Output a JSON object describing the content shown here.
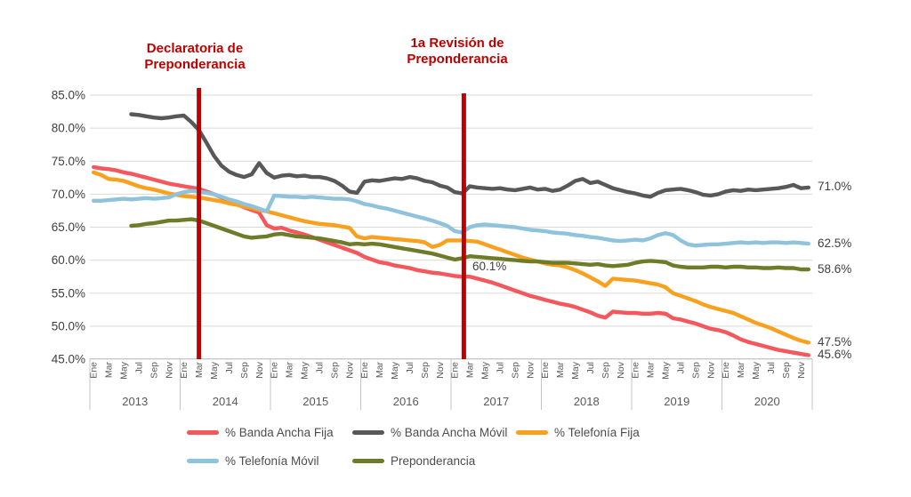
{
  "annotations": {
    "declaratoria": {
      "line1": "Declaratoria de",
      "line2": "Preponderancia",
      "color": "#C00000"
    },
    "revision": {
      "line1": "1a Revisión de",
      "line2": "Preponderancia",
      "color": "#C00000"
    },
    "point_label": {
      "text": "60.1%"
    }
  },
  "chart_data": {
    "type": "line",
    "title": "",
    "x_axis": {
      "years": [
        "2013",
        "2014",
        "2015",
        "2016",
        "2017",
        "2018",
        "2019",
        "2020"
      ],
      "month_tick_labels": [
        "Ene",
        "Mar",
        "May",
        "Jul",
        "Sep",
        "Nov"
      ],
      "months_per_year": 12
    },
    "y_axis": {
      "min": 45,
      "max": 85,
      "step": 5,
      "grid": true,
      "tick_labels": [
        "85.0%",
        "80.0%",
        "75.0%",
        "70.0%",
        "65.0%",
        "60.0%",
        "55.0%",
        "50.0%",
        "45.0%"
      ]
    },
    "colors": {
      "gridline": "#D9D9D9",
      "axis_strip": "#C6C6C6",
      "tick_text": "#595959",
      "value_text": "#3F3F3F",
      "marker_line": "#C00000"
    },
    "vertical_lines": [
      {
        "name": "declaratoria-marker",
        "month_index": 14
      },
      {
        "name": "revision-marker",
        "month_index": 49.2
      }
    ],
    "point_annotation": {
      "text": "60.1%",
      "series": "Preponderancia",
      "value": 60.1,
      "month_index": 48
    },
    "series": [
      {
        "name": "% Banda Ancha Fija",
        "color": "#F4575C",
        "end_label": "45.6%",
        "values": [
          74.1,
          73.9,
          73.8,
          73.6,
          73.3,
          73.1,
          72.8,
          72.5,
          72.2,
          71.9,
          71.6,
          71.4,
          71.2,
          71.0,
          70.8,
          70.4,
          70.0,
          69.5,
          69.0,
          68.5,
          68.0,
          67.6,
          67.2,
          65.3,
          64.8,
          64.9,
          64.5,
          64.2,
          63.9,
          63.5,
          63.1,
          62.7,
          62.3,
          61.9,
          61.5,
          61.1,
          60.5,
          60.1,
          59.7,
          59.5,
          59.2,
          59.0,
          58.8,
          58.5,
          58.3,
          58.1,
          58.0,
          57.8,
          57.6,
          57.5,
          57.5,
          57.2,
          56.9,
          56.6,
          56.2,
          55.8,
          55.4,
          55.0,
          54.6,
          54.3,
          54.0,
          53.7,
          53.4,
          53.2,
          52.9,
          52.5,
          52.1,
          51.6,
          51.3,
          52.2,
          52.1,
          52.0,
          52.0,
          51.9,
          51.9,
          52.0,
          51.9,
          51.2,
          51.0,
          50.7,
          50.4,
          50.0,
          49.6,
          49.4,
          49.1,
          48.6,
          48.0,
          47.6,
          47.3,
          47.0,
          46.7,
          46.4,
          46.2,
          46.0,
          45.8,
          45.6
        ]
      },
      {
        "name": "% Banda Ancha Móvil",
        "color": "#585858",
        "end_label": "71.0%",
        "values": [
          null,
          null,
          null,
          null,
          null,
          82.1,
          82.0,
          81.8,
          81.6,
          81.5,
          81.6,
          81.8,
          81.9,
          80.9,
          79.7,
          77.8,
          75.8,
          74.3,
          73.4,
          72.9,
          72.6,
          73.0,
          74.7,
          73.2,
          72.5,
          72.8,
          72.9,
          72.7,
          72.8,
          72.6,
          72.6,
          72.4,
          72.0,
          71.3,
          70.4,
          70.2,
          71.9,
          72.1,
          72.0,
          72.2,
          72.4,
          72.3,
          72.6,
          72.4,
          72.0,
          71.8,
          71.3,
          71.0,
          70.3,
          70.1,
          71.2,
          71.0,
          70.9,
          70.8,
          70.9,
          70.7,
          70.6,
          70.8,
          71.0,
          70.7,
          70.8,
          70.5,
          70.7,
          71.3,
          72.0,
          72.3,
          71.7,
          71.9,
          71.4,
          70.9,
          70.6,
          70.3,
          70.1,
          69.8,
          69.6,
          70.2,
          70.6,
          70.7,
          70.8,
          70.6,
          70.3,
          69.9,
          69.8,
          70.0,
          70.4,
          70.6,
          70.5,
          70.7,
          70.6,
          70.7,
          70.8,
          70.9,
          71.1,
          71.4,
          70.9,
          71.0
        ]
      },
      {
        "name": "% Telefonía Fija",
        "color": "#F9A01E",
        "end_label": "47.5%",
        "values": [
          73.3,
          72.9,
          72.3,
          72.2,
          72.0,
          71.6,
          71.2,
          70.9,
          70.7,
          70.4,
          70.1,
          69.9,
          69.7,
          69.6,
          69.5,
          69.3,
          69.1,
          68.9,
          68.6,
          68.4,
          68.1,
          67.9,
          67.6,
          67.4,
          67.1,
          66.8,
          66.5,
          66.2,
          65.9,
          65.7,
          65.5,
          65.4,
          65.3,
          65.1,
          64.9,
          63.6,
          63.3,
          63.5,
          63.4,
          63.3,
          63.2,
          63.1,
          63.0,
          62.9,
          62.7,
          62.0,
          62.3,
          63.0,
          63.0,
          63.0,
          62.9,
          62.8,
          62.4,
          62.0,
          61.6,
          61.2,
          60.8,
          60.4,
          60.1,
          59.8,
          59.5,
          59.3,
          59.2,
          58.9,
          58.5,
          58.0,
          57.4,
          56.8,
          56.1,
          57.2,
          57.1,
          57.0,
          56.9,
          56.7,
          56.5,
          56.3,
          55.9,
          55.0,
          54.6,
          54.2,
          53.8,
          53.3,
          52.9,
          52.6,
          52.3,
          52.0,
          51.5,
          51.0,
          50.5,
          50.1,
          49.7,
          49.2,
          48.7,
          48.2,
          47.8,
          47.5
        ]
      },
      {
        "name": "% Telefonía Móvil",
        "color": "#8FC3DC",
        "end_label": "62.5%",
        "values": [
          69.0,
          69.0,
          69.1,
          69.2,
          69.3,
          69.2,
          69.3,
          69.4,
          69.3,
          69.4,
          69.5,
          70.0,
          70.3,
          70.5,
          70.4,
          70.2,
          70.0,
          69.6,
          69.2,
          68.9,
          68.5,
          68.2,
          67.8,
          67.4,
          69.8,
          69.7,
          69.6,
          69.6,
          69.5,
          69.6,
          69.5,
          69.4,
          69.3,
          69.3,
          69.2,
          68.9,
          68.5,
          68.3,
          68.0,
          67.8,
          67.5,
          67.2,
          66.9,
          66.6,
          66.3,
          66.0,
          65.6,
          65.2,
          64.4,
          64.2,
          65.0,
          65.3,
          65.4,
          65.3,
          65.2,
          65.1,
          65.0,
          64.8,
          64.6,
          64.5,
          64.4,
          64.2,
          64.1,
          64.0,
          63.8,
          63.7,
          63.5,
          63.4,
          63.2,
          63.0,
          62.9,
          63.0,
          63.1,
          63.0,
          63.3,
          63.8,
          64.1,
          63.8,
          63.0,
          62.4,
          62.2,
          62.3,
          62.4,
          62.4,
          62.5,
          62.6,
          62.7,
          62.6,
          62.7,
          62.6,
          62.7,
          62.7,
          62.6,
          62.7,
          62.6,
          62.5
        ]
      },
      {
        "name": "Preponderancia",
        "color": "#6E7B28",
        "end_label": "58.6%",
        "values": [
          null,
          null,
          null,
          null,
          null,
          65.2,
          65.3,
          65.5,
          65.6,
          65.8,
          66.0,
          66.0,
          66.1,
          66.2,
          66.0,
          65.6,
          65.2,
          64.8,
          64.4,
          64.0,
          63.6,
          63.4,
          63.5,
          63.6,
          63.9,
          64.0,
          63.8,
          63.6,
          63.5,
          63.4,
          63.3,
          63.1,
          62.9,
          62.7,
          62.4,
          62.5,
          62.4,
          62.5,
          62.4,
          62.2,
          62.0,
          61.8,
          61.6,
          61.4,
          61.2,
          61.0,
          60.7,
          60.4,
          60.1,
          60.3,
          60.6,
          60.5,
          60.4,
          60.3,
          60.2,
          60.1,
          60.0,
          59.9,
          59.8,
          59.8,
          59.7,
          59.6,
          59.6,
          59.6,
          59.5,
          59.4,
          59.3,
          59.4,
          59.2,
          59.1,
          59.2,
          59.3,
          59.6,
          59.8,
          59.9,
          59.8,
          59.7,
          59.2,
          59.0,
          58.9,
          58.9,
          58.9,
          59.0,
          59.0,
          58.9,
          59.0,
          59.0,
          58.9,
          58.9,
          58.8,
          58.8,
          58.9,
          58.8,
          58.8,
          58.6,
          58.6
        ]
      }
    ],
    "legend": {
      "rows": [
        [
          0,
          1,
          2
        ],
        [
          3,
          4
        ]
      ],
      "position": "bottom"
    }
  }
}
